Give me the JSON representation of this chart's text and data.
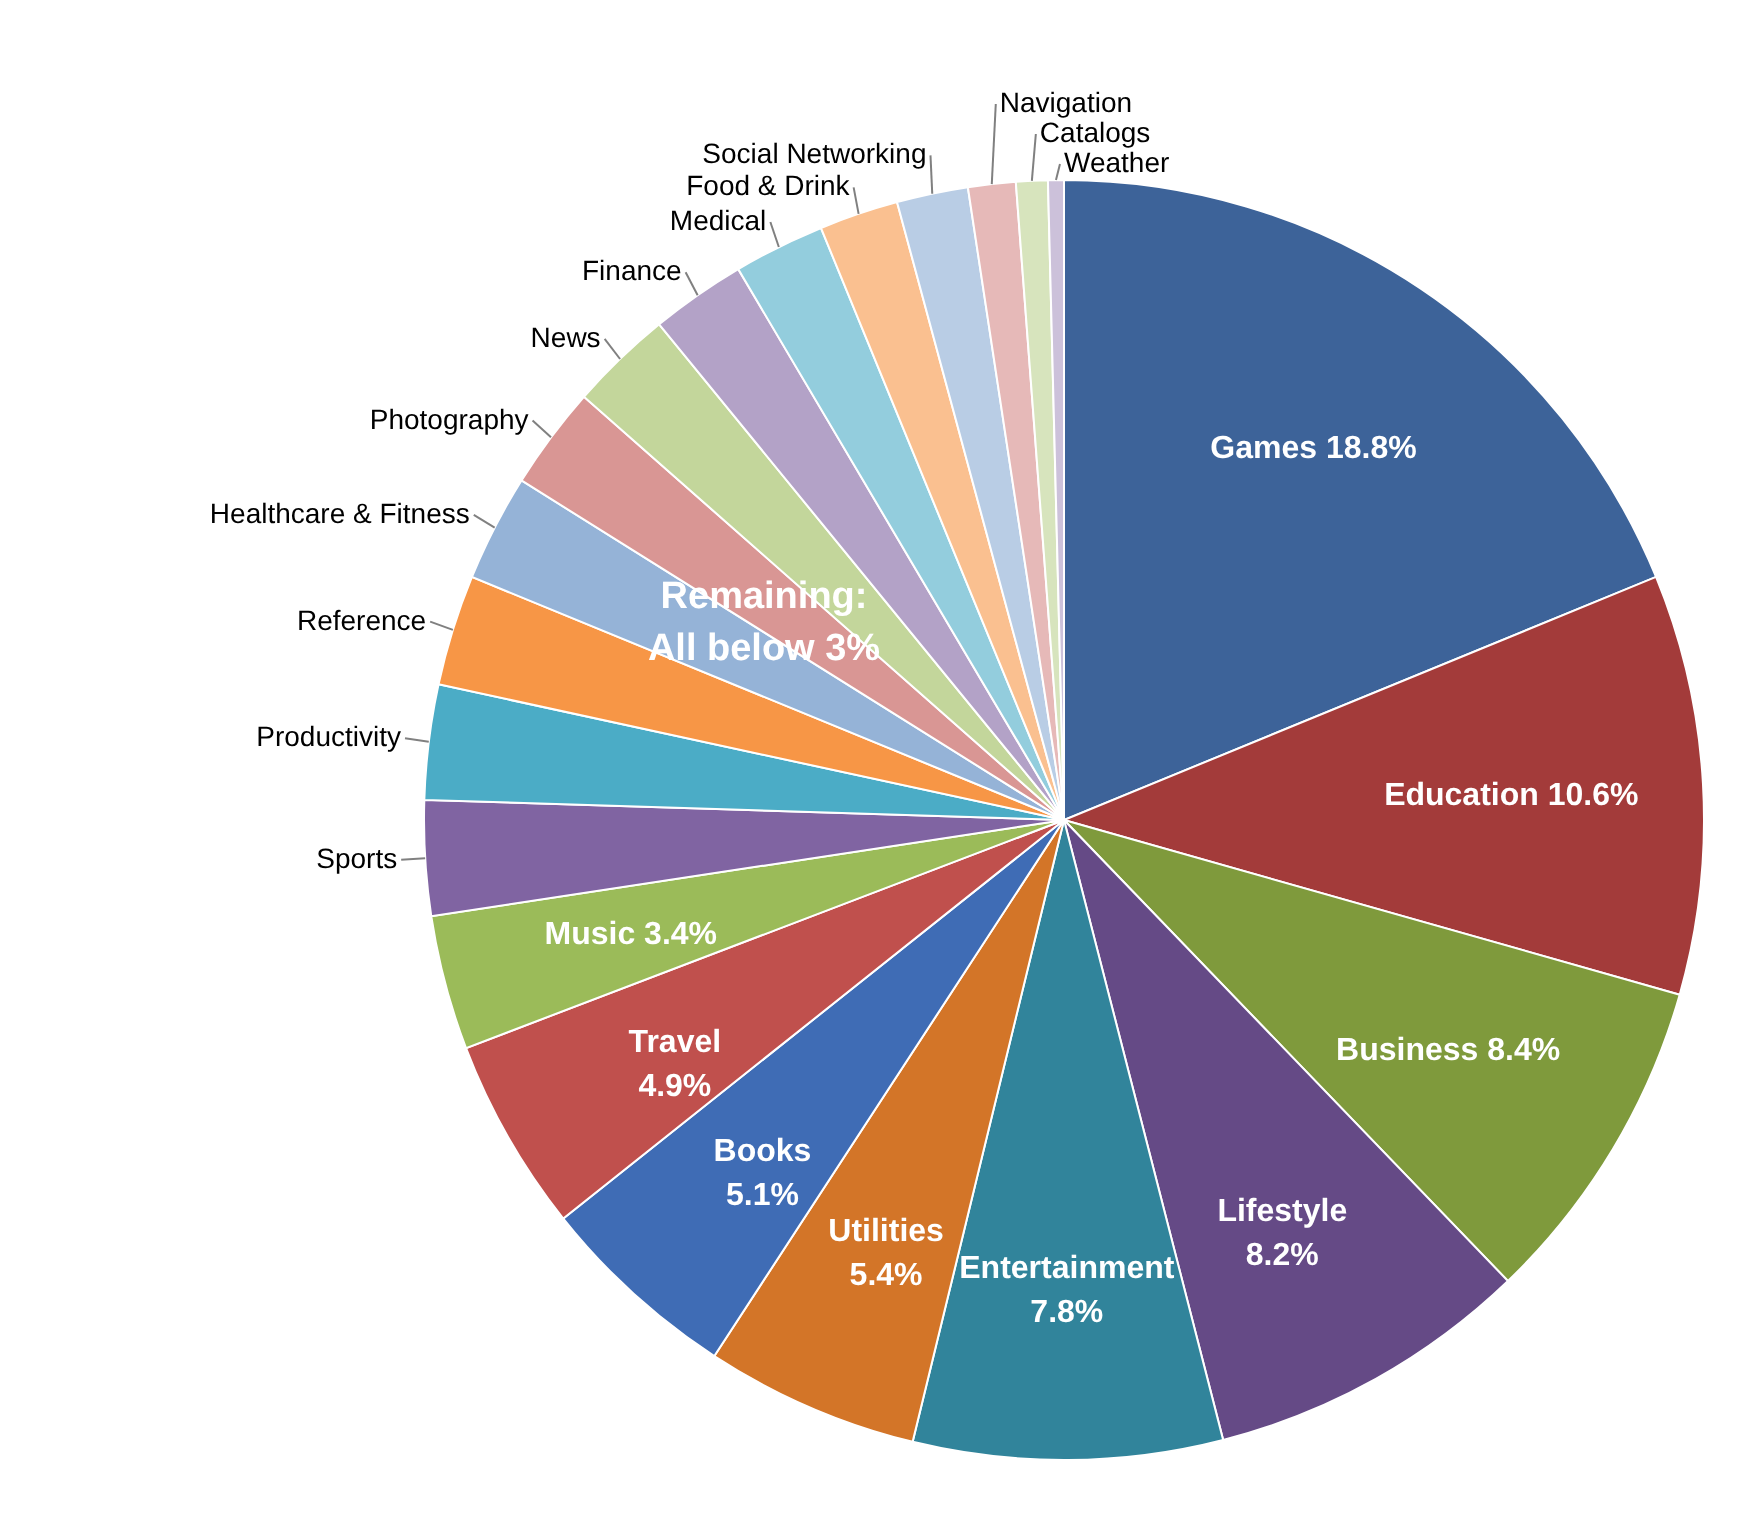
{
  "chart_data": {
    "type": "pie",
    "categories": [
      "Games",
      "Education",
      "Business",
      "Lifestyle",
      "Entertainment",
      "Utilities",
      "Books",
      "Travel",
      "Music",
      "Sports",
      "Productivity",
      "Reference",
      "Healthcare & Fitness",
      "Photography",
      "News",
      "Finance",
      "Medical",
      "Food & Drink",
      "Social Networking",
      "Navigation",
      "Catalogs",
      "Weather"
    ],
    "values": [
      18.8,
      10.6,
      8.4,
      8.2,
      7.8,
      5.4,
      5.1,
      4.9,
      3.4,
      2.9,
      2.9,
      2.8,
      2.7,
      2.6,
      2.6,
      2.4,
      2.3,
      2.0,
      1.8,
      1.2,
      0.8,
      0.4
    ],
    "colors": [
      "#3d6399",
      "#a33b3a",
      "#7f9a3c",
      "#654a86",
      "#31849b",
      "#d37528",
      "#3f6cb5",
      "#c0504d",
      "#9bbb59",
      "#8064a2",
      "#4bacc6",
      "#f79646",
      "#95b3d7",
      "#d99694",
      "#c3d69b",
      "#b3a2c7",
      "#93cddd",
      "#fac090",
      "#b9cde5",
      "#e6b9b8",
      "#d7e4bd",
      "#ccc1da"
    ],
    "value_labels": [
      "18.8%",
      "10.6%",
      "8.4%",
      "8.2%",
      "7.8%",
      "5.4%",
      "5.1%",
      "4.9%",
      "3.4%",
      null,
      null,
      null,
      null,
      null,
      null,
      null,
      null,
      null,
      null,
      null,
      null,
      null
    ],
    "annotations": [
      "Remaining: All below 3%"
    ]
  }
}
